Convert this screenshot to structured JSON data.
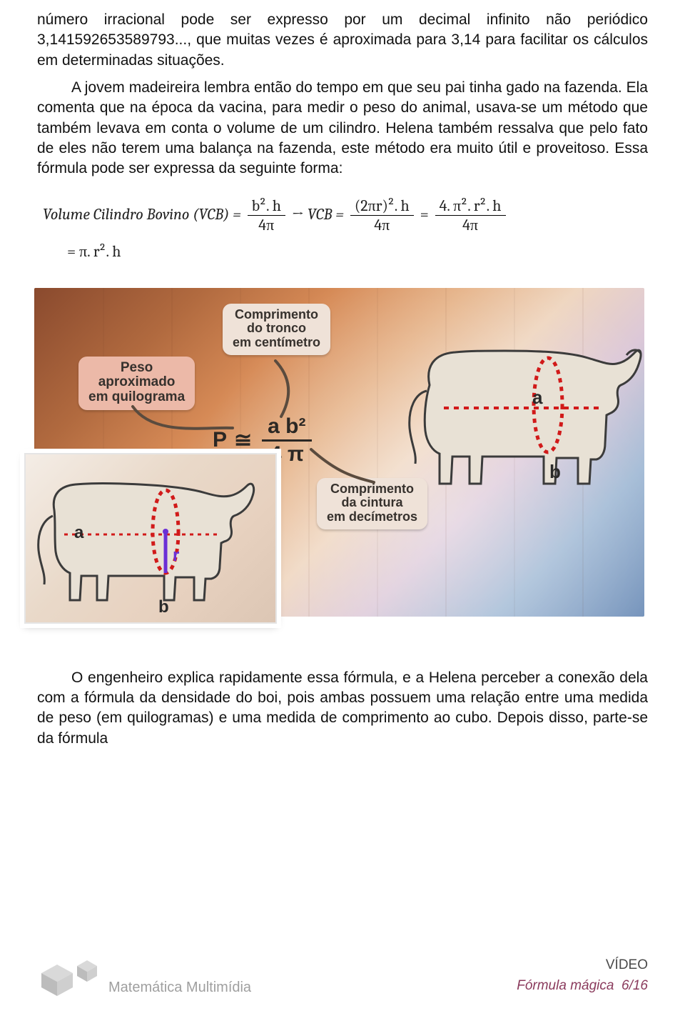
{
  "paragraphs": {
    "p1": "número irracional pode ser expresso por um decimal infinito não periódico 3,141592653589793..., que muitas vezes é aproximada para 3,14  para facilitar os cálculos em determinadas situações.",
    "p2": "A jovem madeireira lembra então do tempo em que seu pai tinha gado na fazenda. Ela comenta que na época da vacina, para medir o peso do animal, usava-se um método que também levava em conta o volume de um cilindro. Helena também ressalva que pelo fato de eles não terem uma balança na fazenda, este método era muito útil e proveitoso. Essa fórmula pode ser expressa da seguinte forma:",
    "p3": "O engenheiro explica rapidamente essa fórmula, e a Helena perceber a conexão dela com a fórmula da densidade do boi, pois ambas possuem uma relação entre uma medida de peso (em quilogramas) e uma medida de comprimento ao cubo. Depois disso, parte-se da fórmula"
  },
  "formula": {
    "lhs_label": "Volume Cilindro Bovino (VCB) =",
    "f1_num": "b². h",
    "f1_den": "4π",
    "arrow": "→",
    "mid": "VCB =",
    "f2_num": "(2πr)². h",
    "f2_den": "4π",
    "eq": "=",
    "f3_num": "4. π². r². h",
    "f3_den": "4π",
    "tail": "= π. r². h"
  },
  "infographic": {
    "tags": {
      "peso": "Peso\naproximado\nem quilograma",
      "tronco": "Comprimento\ndo tronco\nem centímetro",
      "cintura": "Comprimento\nda cintura\nem decímetros"
    },
    "eq": {
      "P": "P",
      "approx": "≅",
      "num": "a b²",
      "den": "4 π"
    },
    "labels": {
      "a": "a",
      "b": "b",
      "r": "r"
    },
    "colors": {
      "tag_bg": "#efe2d8",
      "tag_pink": "#ecb9a8",
      "cow_fill": "#e8e1d5",
      "cow_stroke": "#3b3b3b",
      "ring_red": "#d11a1a",
      "length_red": "#d11a1a",
      "r_line": "#6b2fd6",
      "connector": "#5a4b3e"
    }
  },
  "footer": {
    "brand": "Matemática Multimídia",
    "video_label": "VÍDEO",
    "title": "Fórmula mágica",
    "page": "6/16",
    "brand_color": "#9f9f9f",
    "title_color": "#8a3a5c"
  }
}
